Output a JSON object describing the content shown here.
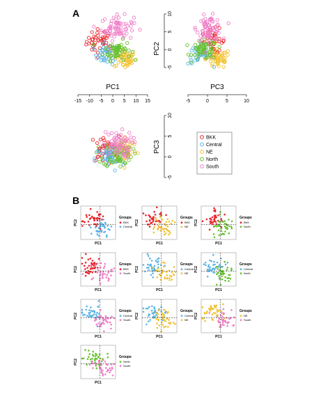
{
  "figure": {
    "panel_a_label": "A",
    "panel_b_label": "B",
    "colors": {
      "BKK": "#e8232a",
      "Central": "#5ab4e6",
      "NE": "#f2c230",
      "North": "#66c22c",
      "South": "#f07ec8"
    }
  },
  "panelA": {
    "legend": [
      "BKK",
      "Central",
      "NE",
      "North",
      "South"
    ],
    "pc1_ticks": [
      "-15",
      "-10",
      "-5",
      "0",
      "5",
      "10",
      "15"
    ],
    "pc3_ticks": [
      "-5",
      "0",
      "5",
      "10"
    ],
    "pc2_ticks": [
      "-5",
      "0",
      "5",
      "10"
    ],
    "pc3_y_ticks": [
      "-5",
      "0",
      "5",
      "10"
    ]
  },
  "chart_data": [
    {
      "type": "scatter",
      "panel": "A",
      "plot": "PC1 vs PC2",
      "xlabel": "PC1",
      "ylabel": "PC2",
      "xlim": [
        -15,
        15
      ],
      "ylim": [
        -5,
        10
      ],
      "groups": [
        {
          "name": "BKK",
          "center": [
            -6,
            3
          ],
          "spread": [
            5,
            2.5
          ],
          "n": 40
        },
        {
          "name": "Central",
          "center": [
            -3,
            0
          ],
          "spread": [
            5,
            2
          ],
          "n": 45
        },
        {
          "name": "NE",
          "center": [
            4,
            -1
          ],
          "spread": [
            4,
            2
          ],
          "n": 55
        },
        {
          "name": "North",
          "center": [
            1,
            1
          ],
          "spread": [
            5,
            2
          ],
          "n": 60
        },
        {
          "name": "South",
          "center": [
            1,
            6
          ],
          "spread": [
            6,
            2.5
          ],
          "n": 70
        }
      ]
    },
    {
      "type": "scatter",
      "panel": "A",
      "plot": "PC3 vs PC2",
      "xlabel": "PC3",
      "ylabel": "PC2",
      "xlim": [
        -5,
        10
      ],
      "ylim": [
        -5,
        10
      ],
      "groups": [
        {
          "name": "BKK",
          "center": [
            2,
            3
          ],
          "spread": [
            2.5,
            2.5
          ],
          "n": 40
        },
        {
          "name": "Central",
          "center": [
            -1,
            0
          ],
          "spread": [
            2.5,
            2
          ],
          "n": 45
        },
        {
          "name": "NE",
          "center": [
            3,
            -1
          ],
          "spread": [
            2.5,
            2
          ],
          "n": 55
        },
        {
          "name": "North",
          "center": [
            0,
            1
          ],
          "spread": [
            2.5,
            2
          ],
          "n": 60
        },
        {
          "name": "South",
          "center": [
            1,
            6
          ],
          "spread": [
            2.5,
            2.5
          ],
          "n": 70
        }
      ]
    },
    {
      "type": "scatter",
      "panel": "A",
      "plot": "PC1 vs PC3",
      "xlabel": "",
      "ylabel": "PC3",
      "xlim": [
        -15,
        15
      ],
      "ylim": [
        -5,
        10
      ],
      "groups": [
        {
          "name": "BKK",
          "center": [
            -5,
            2
          ],
          "spread": [
            5,
            2.5
          ],
          "n": 40
        },
        {
          "name": "Central",
          "center": [
            -3,
            0
          ],
          "spread": [
            5,
            2.5
          ],
          "n": 45
        },
        {
          "name": "NE",
          "center": [
            3,
            2
          ],
          "spread": [
            4,
            2.5
          ],
          "n": 55
        },
        {
          "name": "North",
          "center": [
            0,
            1
          ],
          "spread": [
            5,
            2.5
          ],
          "n": 60
        },
        {
          "name": "South",
          "center": [
            0,
            3
          ],
          "spread": [
            5,
            2.5
          ],
          "n": 70
        }
      ]
    },
    {
      "type": "scatter",
      "panel": "B",
      "plots": [
        {
          "pair": [
            "BKK",
            "Central"
          ],
          "legend_title": "Groups",
          "xlabel": "PC1",
          "ylabel": "PC2"
        },
        {
          "pair": [
            "BKK",
            "NE"
          ],
          "legend_title": "Groups",
          "xlabel": "PC1",
          "ylabel": "PC2"
        },
        {
          "pair": [
            "BKK",
            "North"
          ],
          "legend_title": "Groups",
          "xlabel": "PC1",
          "ylabel": "PC2"
        },
        {
          "pair": [
            "BKK",
            "South"
          ],
          "legend_title": "Groups",
          "xlabel": "PC1",
          "ylabel": "PC2"
        },
        {
          "pair": [
            "Central",
            "NE"
          ],
          "legend_title": "Groups",
          "xlabel": "PC1",
          "ylabel": "PC2"
        },
        {
          "pair": [
            "Central",
            "North"
          ],
          "legend_title": "Groups",
          "xlabel": "PC1",
          "ylabel": "PC2"
        },
        {
          "pair": [
            "Central",
            "South"
          ],
          "legend_title": "Groups",
          "xlabel": "PC1",
          "ylabel": "PC2"
        },
        {
          "pair": [
            "Central",
            "NE"
          ],
          "legend_title": "Groups",
          "xlabel": "PC1",
          "ylabel": "PC2"
        },
        {
          "pair": [
            "NE",
            "South"
          ],
          "legend_title": "Groups",
          "xlabel": "PC1",
          "ylabel": "PC2"
        },
        {
          "pair": [
            "North",
            "South"
          ],
          "legend_title": "Groups",
          "xlabel": "PC1",
          "ylabel": "PC2"
        }
      ]
    }
  ]
}
